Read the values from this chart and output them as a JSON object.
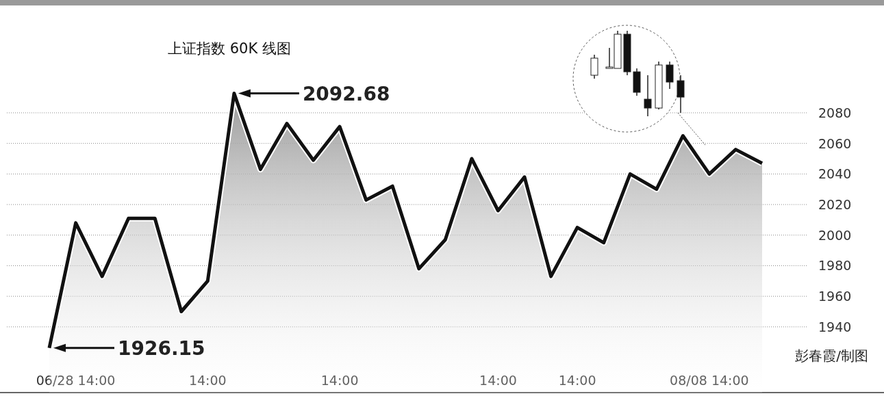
{
  "chart_data": {
    "type": "area",
    "title": "上证指数 60K 线图",
    "categories": [
      null,
      "06/28 14:00",
      null,
      null,
      null,
      null,
      "14:00",
      null,
      null,
      null,
      null,
      "14:00",
      null,
      null,
      null,
      null,
      null,
      "14:00",
      null,
      null,
      "14:00",
      null,
      null,
      null,
      null,
      "08/08 14:00",
      null,
      null
    ],
    "series": [
      {
        "color": "#111111",
        "values": [
          1926.15,
          2008,
          1973,
          2011,
          2011,
          1950,
          1970,
          2092.68,
          2043,
          2073,
          2049,
          2071,
          2023,
          2032,
          1978,
          1997,
          2050,
          2016,
          2038,
          1973,
          2005,
          1995,
          2040,
          2030,
          2065,
          2040,
          2056,
          2047
        ]
      }
    ],
    "ylim": [
      1897,
      2152
    ],
    "yticks": [
      1940,
      1960,
      1980,
      2000,
      2020,
      2040,
      2060,
      2080
    ],
    "grid": "y",
    "marker": "none",
    "line_style": "solid",
    "annotations": [
      "2092.68",
      "1926.15",
      "彭春霞/制图"
    ]
  }
}
